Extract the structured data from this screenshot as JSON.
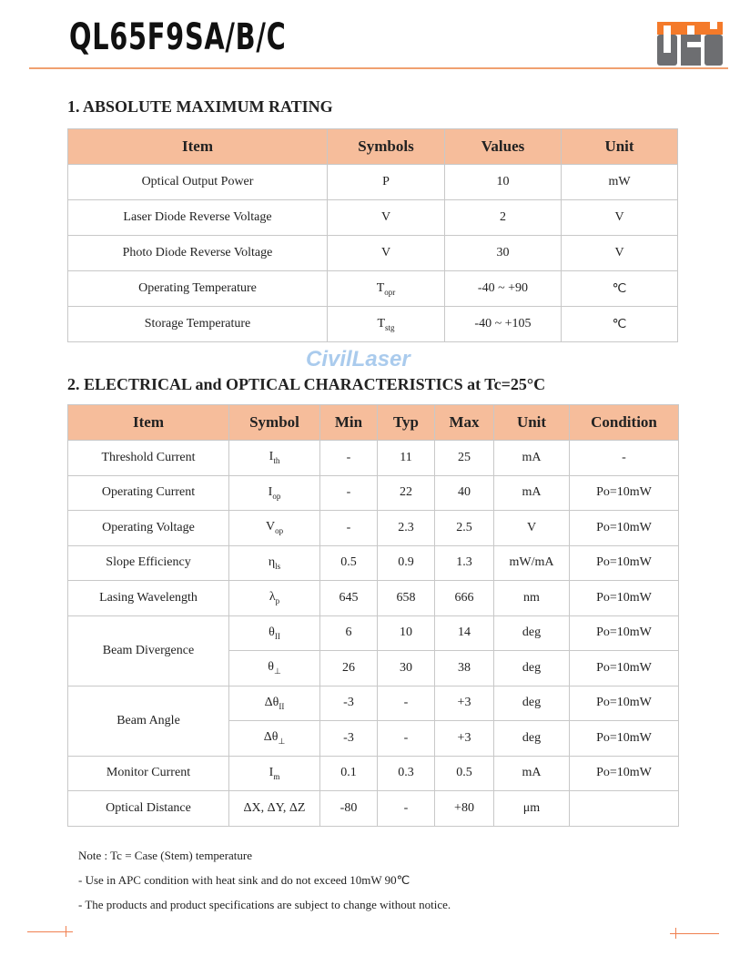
{
  "header": {
    "title": "QL65F9SA/B/C",
    "logo_text": "QSI",
    "accent": "#f47a2a"
  },
  "section1": {
    "heading": "1. ABSOLUTE MAXIMUM RATING",
    "columns": [
      "Item",
      "Symbols",
      "Values",
      "Unit"
    ],
    "rows": [
      {
        "item": "Optical Output Power",
        "sym": "P",
        "sub": "",
        "value": "10",
        "unit": "mW"
      },
      {
        "item": "Laser Diode Reverse Voltage",
        "sym": "V",
        "sub": "",
        "value": "2",
        "unit": "V"
      },
      {
        "item": "Photo Diode Reverse Voltage",
        "sym": "V",
        "sub": "",
        "value": "30",
        "unit": "V"
      },
      {
        "item": "Operating Temperature",
        "sym": "T",
        "sub": "opr",
        "value": "-40 ~ +90",
        "unit": "℃"
      },
      {
        "item": "Storage Temperature",
        "sym": "T",
        "sub": "stg",
        "value": "-40 ~ +105",
        "unit": "℃"
      }
    ]
  },
  "section2": {
    "heading": "2. ELECTRICAL and OPTICAL CHARACTERISTICS at Tc=25°C",
    "columns": [
      "Item",
      "Symbol",
      "Min",
      "Typ",
      "Max",
      "Unit",
      "Condition"
    ],
    "rows": [
      {
        "item": "Threshold Current",
        "span": 1,
        "sym": "I",
        "sub": "th",
        "min": "-",
        "typ": "11",
        "max": "25",
        "unit": "mA",
        "cond": "-"
      },
      {
        "item": "Operating Current",
        "span": 1,
        "sym": "I",
        "sub": "op",
        "min": "-",
        "typ": "22",
        "max": "40",
        "unit": "mA",
        "cond": "Po=10mW"
      },
      {
        "item": "Operating Voltage",
        "span": 1,
        "sym": "V",
        "sub": "op",
        "min": "-",
        "typ": "2.3",
        "max": "2.5",
        "unit": "V",
        "cond": "Po=10mW"
      },
      {
        "item": "Slope Efficiency",
        "span": 1,
        "sym": "η",
        "sub": "ls",
        "min": "0.5",
        "typ": "0.9",
        "max": "1.3",
        "unit": "mW/mA",
        "cond": "Po=10mW"
      },
      {
        "item": "Lasing Wavelength",
        "span": 1,
        "sym": "λ",
        "sub": "p",
        "min": "645",
        "typ": "658",
        "max": "666",
        "unit": "nm",
        "cond": "Po=10mW"
      },
      {
        "item": "Beam Divergence",
        "span": 2,
        "sym": "θ",
        "sub": "II",
        "min": "6",
        "typ": "10",
        "max": "14",
        "unit": "deg",
        "cond": "Po=10mW"
      },
      {
        "item": null,
        "sym": "θ",
        "sub": "⊥",
        "min": "26",
        "typ": "30",
        "max": "38",
        "unit": "deg",
        "cond": "Po=10mW"
      },
      {
        "item": "Beam Angle",
        "span": 2,
        "sym": "Δθ",
        "sub": "II",
        "min": "-3",
        "typ": "-",
        "max": "+3",
        "unit": "deg",
        "cond": "Po=10mW"
      },
      {
        "item": null,
        "sym": "Δθ",
        "sub": "⊥",
        "min": "-3",
        "typ": "-",
        "max": "+3",
        "unit": "deg",
        "cond": "Po=10mW"
      },
      {
        "item": "Monitor Current",
        "span": 1,
        "sym": "I",
        "sub": "m",
        "min": "0.1",
        "typ": "0.3",
        "max": "0.5",
        "unit": "mA",
        "cond": "Po=10mW"
      },
      {
        "item": "Optical Distance",
        "span": 1,
        "sym": "ΔX, ΔY, ΔZ",
        "sub": "",
        "min": "-80",
        "typ": "-",
        "max": "+80",
        "unit": "μm",
        "cond": ""
      }
    ]
  },
  "watermark": "CivilLaser",
  "notes": [
    "Note  : Tc = Case (Stem) temperature",
    "- Use in APC condition with heat sink and do not exceed 10mW 90℃",
    "- The products and product specifications are subject to change without notice."
  ]
}
